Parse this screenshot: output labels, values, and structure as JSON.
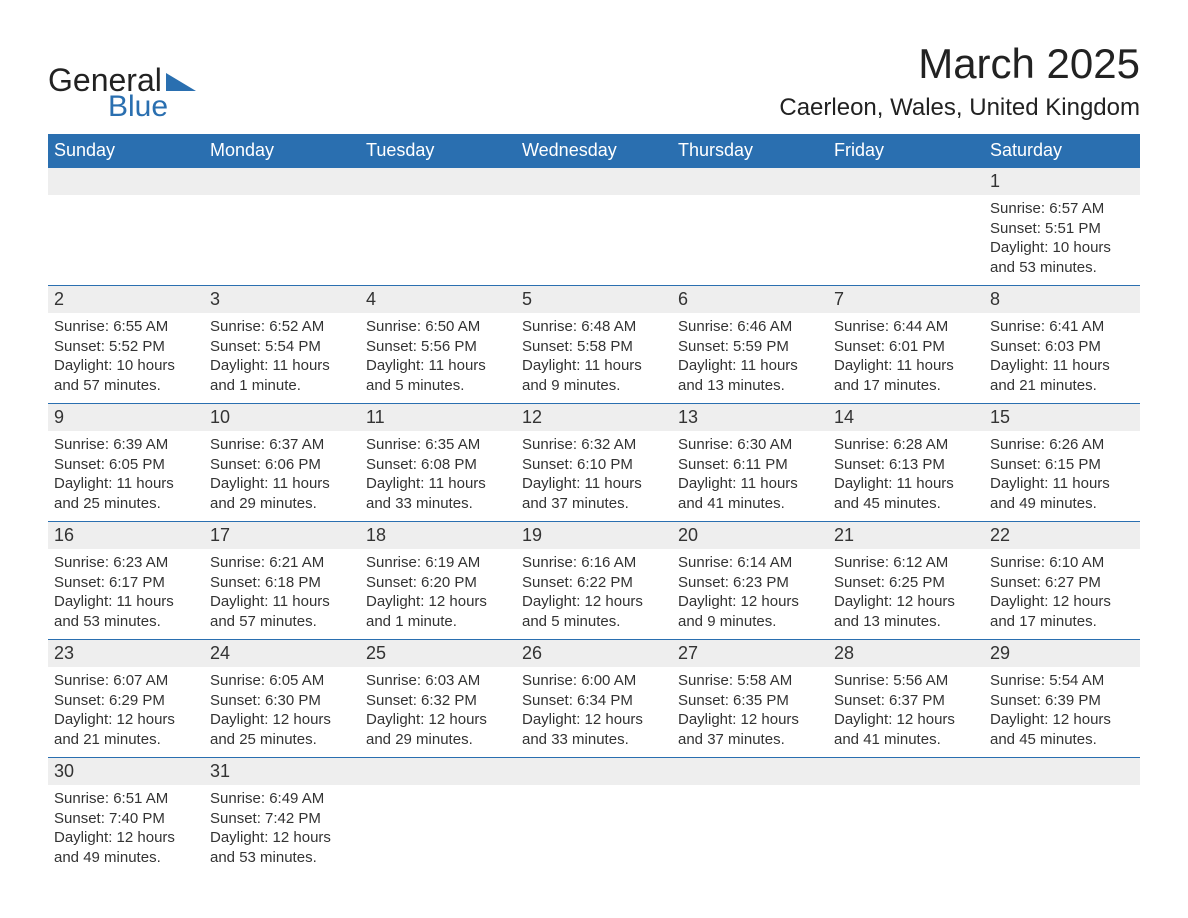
{
  "brand": {
    "line1": "General",
    "line2": "Blue"
  },
  "title": "March 2025",
  "location": "Caerleon, Wales, United Kingdom",
  "colors": {
    "header_bg": "#2a6fb0",
    "header_text": "#ffffff",
    "daynum_bg": "#eeeeee",
    "text": "#333333",
    "page_bg": "#ffffff",
    "row_border": "#2a6fb0",
    "logo_blue": "#2a6fb0"
  },
  "typography": {
    "title_fontsize": 42,
    "location_fontsize": 24,
    "weekday_fontsize": 18,
    "daynum_fontsize": 18,
    "detail_fontsize": 15
  },
  "weekdays": [
    "Sunday",
    "Monday",
    "Tuesday",
    "Wednesday",
    "Thursday",
    "Friday",
    "Saturday"
  ],
  "weeks": [
    [
      null,
      null,
      null,
      null,
      null,
      null,
      {
        "d": "1",
        "sr": "6:57 AM",
        "ss": "5:51 PM",
        "dl": "10 hours and 53 minutes."
      }
    ],
    [
      {
        "d": "2",
        "sr": "6:55 AM",
        "ss": "5:52 PM",
        "dl": "10 hours and 57 minutes."
      },
      {
        "d": "3",
        "sr": "6:52 AM",
        "ss": "5:54 PM",
        "dl": "11 hours and 1 minute."
      },
      {
        "d": "4",
        "sr": "6:50 AM",
        "ss": "5:56 PM",
        "dl": "11 hours and 5 minutes."
      },
      {
        "d": "5",
        "sr": "6:48 AM",
        "ss": "5:58 PM",
        "dl": "11 hours and 9 minutes."
      },
      {
        "d": "6",
        "sr": "6:46 AM",
        "ss": "5:59 PM",
        "dl": "11 hours and 13 minutes."
      },
      {
        "d": "7",
        "sr": "6:44 AM",
        "ss": "6:01 PM",
        "dl": "11 hours and 17 minutes."
      },
      {
        "d": "8",
        "sr": "6:41 AM",
        "ss": "6:03 PM",
        "dl": "11 hours and 21 minutes."
      }
    ],
    [
      {
        "d": "9",
        "sr": "6:39 AM",
        "ss": "6:05 PM",
        "dl": "11 hours and 25 minutes."
      },
      {
        "d": "10",
        "sr": "6:37 AM",
        "ss": "6:06 PM",
        "dl": "11 hours and 29 minutes."
      },
      {
        "d": "11",
        "sr": "6:35 AM",
        "ss": "6:08 PM",
        "dl": "11 hours and 33 minutes."
      },
      {
        "d": "12",
        "sr": "6:32 AM",
        "ss": "6:10 PM",
        "dl": "11 hours and 37 minutes."
      },
      {
        "d": "13",
        "sr": "6:30 AM",
        "ss": "6:11 PM",
        "dl": "11 hours and 41 minutes."
      },
      {
        "d": "14",
        "sr": "6:28 AM",
        "ss": "6:13 PM",
        "dl": "11 hours and 45 minutes."
      },
      {
        "d": "15",
        "sr": "6:26 AM",
        "ss": "6:15 PM",
        "dl": "11 hours and 49 minutes."
      }
    ],
    [
      {
        "d": "16",
        "sr": "6:23 AM",
        "ss": "6:17 PM",
        "dl": "11 hours and 53 minutes."
      },
      {
        "d": "17",
        "sr": "6:21 AM",
        "ss": "6:18 PM",
        "dl": "11 hours and 57 minutes."
      },
      {
        "d": "18",
        "sr": "6:19 AM",
        "ss": "6:20 PM",
        "dl": "12 hours and 1 minute."
      },
      {
        "d": "19",
        "sr": "6:16 AM",
        "ss": "6:22 PM",
        "dl": "12 hours and 5 minutes."
      },
      {
        "d": "20",
        "sr": "6:14 AM",
        "ss": "6:23 PM",
        "dl": "12 hours and 9 minutes."
      },
      {
        "d": "21",
        "sr": "6:12 AM",
        "ss": "6:25 PM",
        "dl": "12 hours and 13 minutes."
      },
      {
        "d": "22",
        "sr": "6:10 AM",
        "ss": "6:27 PM",
        "dl": "12 hours and 17 minutes."
      }
    ],
    [
      {
        "d": "23",
        "sr": "6:07 AM",
        "ss": "6:29 PM",
        "dl": "12 hours and 21 minutes."
      },
      {
        "d": "24",
        "sr": "6:05 AM",
        "ss": "6:30 PM",
        "dl": "12 hours and 25 minutes."
      },
      {
        "d": "25",
        "sr": "6:03 AM",
        "ss": "6:32 PM",
        "dl": "12 hours and 29 minutes."
      },
      {
        "d": "26",
        "sr": "6:00 AM",
        "ss": "6:34 PM",
        "dl": "12 hours and 33 minutes."
      },
      {
        "d": "27",
        "sr": "5:58 AM",
        "ss": "6:35 PM",
        "dl": "12 hours and 37 minutes."
      },
      {
        "d": "28",
        "sr": "5:56 AM",
        "ss": "6:37 PM",
        "dl": "12 hours and 41 minutes."
      },
      {
        "d": "29",
        "sr": "5:54 AM",
        "ss": "6:39 PM",
        "dl": "12 hours and 45 minutes."
      }
    ],
    [
      {
        "d": "30",
        "sr": "6:51 AM",
        "ss": "7:40 PM",
        "dl": "12 hours and 49 minutes."
      },
      {
        "d": "31",
        "sr": "6:49 AM",
        "ss": "7:42 PM",
        "dl": "12 hours and 53 minutes."
      },
      null,
      null,
      null,
      null,
      null
    ]
  ],
  "labels": {
    "sunrise": "Sunrise:",
    "sunset": "Sunset:",
    "daylight": "Daylight:"
  }
}
